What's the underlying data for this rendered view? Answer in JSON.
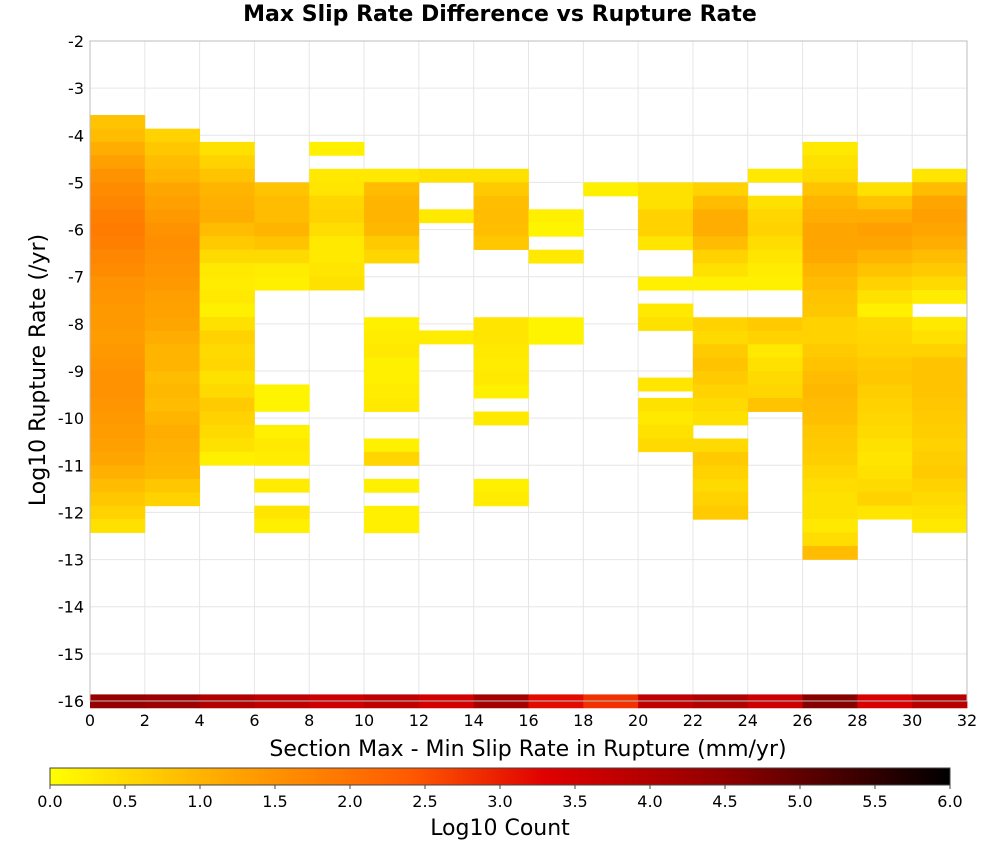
{
  "chart_data": {
    "type": "heatmap",
    "title": "Max Slip Rate Difference vs Rupture Rate",
    "xlabel": "Section Max - Min Slip Rate in Rupture (mm/yr)",
    "ylabel": "Log10 Rupture Rate (/yr)",
    "xlim": [
      0,
      32
    ],
    "ylim": [
      -16,
      -2
    ],
    "x_ticks": [
      "0",
      "2",
      "4",
      "6",
      "8",
      "10",
      "12",
      "14",
      "16",
      "18",
      "20",
      "22",
      "24",
      "26",
      "28",
      "30",
      "32"
    ],
    "y_ticks": [
      "-2",
      "-3",
      "-4",
      "-5",
      "-6",
      "-7",
      "-8",
      "-9",
      "-10",
      "-11",
      "-12",
      "-13",
      "-14",
      "-15",
      "-16"
    ],
    "grid": true,
    "colorbar": {
      "label": "Log10 Count",
      "range": [
        0,
        6
      ],
      "ticks": [
        "0.0",
        "0.5",
        "1.0",
        "1.5",
        "2.0",
        "2.5",
        "3.0",
        "3.5",
        "4.0",
        "4.5",
        "5.0",
        "5.5",
        "6.0"
      ],
      "stops": [
        "#ffff00",
        "#ffa500",
        "#ff5a00",
        "#e00000",
        "#900000",
        "#000000"
      ]
    },
    "x_bin_width": 2,
    "y_bin_height": 0.2857,
    "rows": [
      {
        "x0": 0,
        "y_top": -3.57,
        "values": [
          0.8,
          0.9,
          1.1,
          1.3,
          1.5,
          1.6,
          1.7,
          1.8,
          1.85,
          1.8,
          1.7,
          1.6,
          1.5,
          1.45,
          1.4,
          1.4,
          1.35,
          1.4,
          1.45,
          1.5,
          1.5,
          1.45,
          1.4,
          1.35,
          1.3,
          1.2,
          1.05,
          0.9,
          0.75,
          0.6,
          0.4
        ]
      },
      {
        "x0": 2,
        "y_top": -3.86,
        "values": [
          0.6,
          0.75,
          0.9,
          1.0,
          1.2,
          1.3,
          1.4,
          1.5,
          1.55,
          1.5,
          1.45,
          1.4,
          1.3,
          1.25,
          1.2,
          1.1,
          1.0,
          1.0,
          0.9,
          0.95,
          0.9,
          1.0,
          1.1,
          1.05,
          1.0,
          0.95,
          0.75,
          0.6
        ]
      },
      {
        "x0": 4,
        "y_top": -4.14,
        "values": [
          0.4,
          0.6,
          0.8,
          1.0,
          1.05,
          1.1,
          0.9,
          0.7,
          0.5,
          0.3,
          0.25,
          0.3,
          0.2,
          0.4,
          0.6,
          0.5,
          0.55,
          0.4,
          0.5,
          0.7,
          0.6,
          0.5,
          0.4,
          0.2
        ]
      },
      {
        "x0": 6,
        "y_top": -5.0,
        "values": [
          0.8,
          0.9,
          0.9,
          1.0,
          0.8,
          0.5,
          0.25,
          0.2,
          null,
          null,
          null,
          null,
          null,
          null,
          null,
          0.15,
          0.15,
          null,
          0.2,
          0.3,
          0.25,
          null,
          0.25,
          null,
          0.35,
          0.2
        ]
      },
      {
        "x0": 8,
        "y_top": -4.14,
        "values": [
          0.2,
          null,
          0.3,
          0.35,
          0.55,
          0.6,
          0.45,
          0.3,
          0.3,
          0.35,
          0.4
        ]
      },
      {
        "x0": 10,
        "y_top": -4.71,
        "values": [
          0.3,
          0.9,
          1.0,
          1.0,
          0.95,
          0.7,
          0.55
        ]
      },
      {
        "x0": 10,
        "y_top": -7.86,
        "values": [
          0.2,
          0.25,
          0.3,
          0.2,
          0.2,
          0.25,
          0.3,
          null,
          null,
          0.2,
          0.55,
          null,
          0.2,
          null,
          0.2,
          0.2
        ]
      },
      {
        "x0": 12,
        "y_top": -4.71,
        "values": [
          0.4
        ]
      },
      {
        "x0": 12,
        "y_top": -5.57,
        "values": [
          0.3
        ]
      },
      {
        "x0": 12,
        "y_top": -8.14,
        "values": [
          0.25
        ]
      },
      {
        "x0": 14,
        "y_top": -4.71,
        "values": [
          0.4,
          0.7,
          0.85,
          0.9,
          0.85,
          0.75
        ]
      },
      {
        "x0": 14,
        "y_top": -7.86,
        "values": [
          0.35,
          0.35,
          0.3,
          0.25,
          0.3,
          0.2,
          null,
          0.3,
          null,
          null,
          null,
          null,
          0.2,
          0.25
        ]
      },
      {
        "x0": 16,
        "y_top": -5.57,
        "values": [
          0.2,
          0.15,
          null,
          0.3
        ]
      },
      {
        "x0": 16,
        "y_top": -7.86,
        "values": [
          0.15,
          0.15
        ]
      },
      {
        "x0": 18,
        "y_top": -5.0,
        "values": [
          0.2
        ]
      },
      {
        "x0": 20,
        "y_top": -5.0,
        "values": [
          0.4,
          0.4,
          0.6,
          0.6,
          0.35
        ]
      },
      {
        "x0": 20,
        "y_top": -7.0,
        "values": [
          0.2
        ]
      },
      {
        "x0": 20,
        "y_top": -7.57,
        "values": [
          0.3,
          0.4
        ]
      },
      {
        "x0": 20,
        "y_top": -9.14,
        "values": [
          0.35
        ]
      },
      {
        "x0": 20,
        "y_top": -9.57,
        "values": [
          0.4,
          0.3,
          0.4,
          0.5
        ]
      },
      {
        "x0": 22,
        "y_top": -5.0,
        "values": [
          0.6,
          0.9,
          1.1,
          1.1,
          0.9,
          0.6,
          0.4,
          0.2
        ]
      },
      {
        "x0": 22,
        "y_top": -7.86,
        "values": [
          0.6,
          0.5,
          0.7,
          0.8,
          0.7,
          0.6,
          0.5,
          0.4,
          null,
          0.5,
          0.7,
          0.6,
          0.5,
          0.6,
          0.7
        ]
      },
      {
        "x0": 24,
        "y_top": -4.71,
        "values": [
          0.3,
          null,
          0.4,
          0.55,
          0.6,
          0.45,
          0.35,
          0.25,
          0.2
        ]
      },
      {
        "x0": 24,
        "y_top": -7.86,
        "values": [
          0.7,
          0.6,
          0.3,
          0.4,
          0.5,
          0.55,
          0.8
        ]
      },
      {
        "x0": 26,
        "y_top": -4.14,
        "values": [
          0.3,
          0.4,
          0.5,
          0.8,
          1.0,
          1.1,
          1.2,
          1.2,
          1.15,
          1.0,
          0.9,
          0.8,
          0.75,
          0.6,
          0.6,
          0.7,
          0.8,
          0.9,
          0.95,
          0.9,
          0.85,
          0.75,
          0.7,
          0.65,
          0.55,
          0.45,
          0.4,
          0.4,
          0.3,
          0.45,
          0.9
        ]
      },
      {
        "x0": 28,
        "y_top": -5.0,
        "values": [
          0.4,
          0.8,
          1.1,
          1.3,
          1.2,
          1.0,
          0.8,
          0.6,
          0.4,
          0.2,
          0.5,
          0.55,
          0.6,
          0.7,
          0.75,
          0.65,
          0.6,
          0.55,
          0.5,
          0.4,
          0.35,
          0.4,
          0.5,
          0.6,
          0.35
        ]
      },
      {
        "x0": 30,
        "y_top": -4.71,
        "values": [
          0.35,
          0.9,
          1.2,
          1.3,
          1.2,
          1.1,
          0.9,
          0.7,
          0.5,
          0.25,
          null,
          0.3,
          0.4,
          0.6,
          0.8,
          0.8,
          0.8,
          0.75,
          0.7,
          0.65,
          0.6,
          0.65,
          0.7,
          0.6,
          0.5,
          0.4,
          0.3
        ]
      }
    ],
    "bottom_row": {
      "y_top": -15.86,
      "values": [
        4.4,
        4.3,
        4.0,
        3.8,
        3.6,
        3.8,
        3.5,
        4.2,
        3.2,
        2.8,
        3.8,
        4.0,
        3.6,
        4.6,
        3.4,
        3.9
      ]
    }
  }
}
